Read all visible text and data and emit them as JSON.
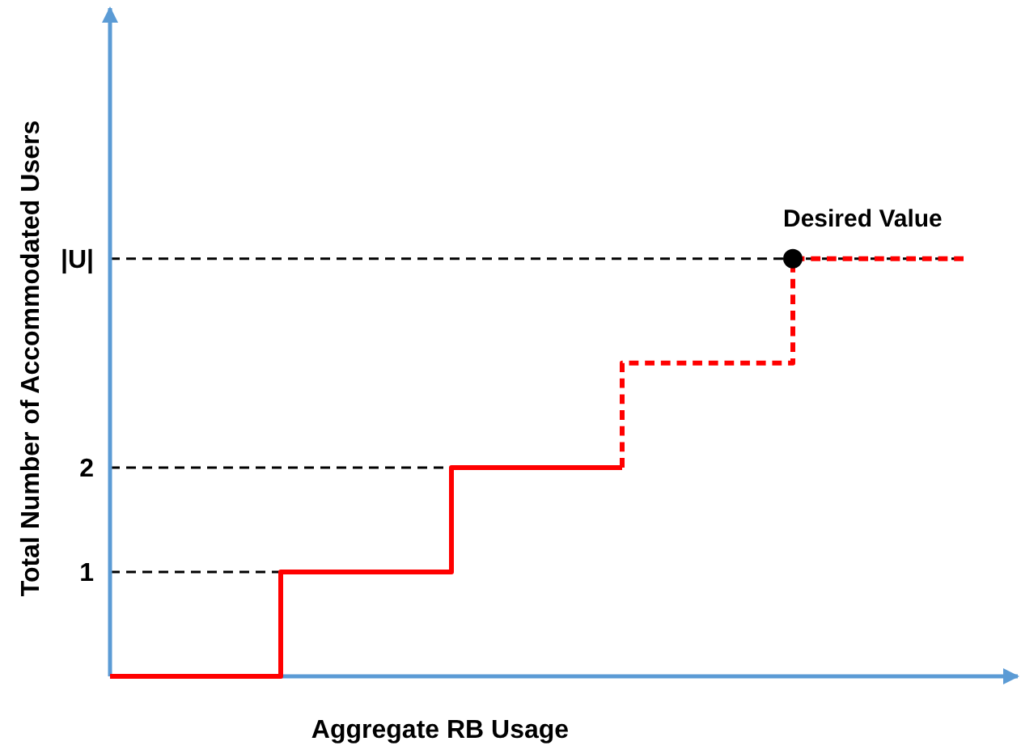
{
  "chart_data": {
    "type": "step",
    "xlabel": "Aggregate RB Usage",
    "ylabel": "Total Number of Accommodated Users",
    "categories": [
      null,
      null,
      null,
      null,
      null,
      null
    ],
    "series": [
      {
        "color": "#ff0000",
        "line_style": "solid",
        "values": [
          0,
          0,
          1,
          2,
          null,
          null
        ]
      },
      {
        "color": "#ff0000",
        "line_style": "dashed",
        "values": [
          null,
          null,
          null,
          2,
          3,
          4
        ]
      },
      {
        "type": "scatter",
        "color": "#000000",
        "marker": "circle",
        "values": [
          null,
          null,
          null,
          null,
          4,
          null
        ]
      }
    ],
    "ylim": [
      0,
      6.4
    ],
    "yticks": [
      1,
      2,
      {
        "value": 4,
        "label": "|U|"
      }
    ],
    "ref_lines": [
      {
        "axis": "y",
        "value": 1,
        "color": "#000000",
        "line_style": "dashed"
      },
      {
        "axis": "y",
        "value": 2,
        "color": "#000000",
        "line_style": "dashed"
      },
      {
        "axis": "y",
        "value": 4,
        "color": "#000000",
        "line_style": "dashed"
      }
    ],
    "annotations": [
      "Desired Value"
    ],
    "grid": false
  }
}
